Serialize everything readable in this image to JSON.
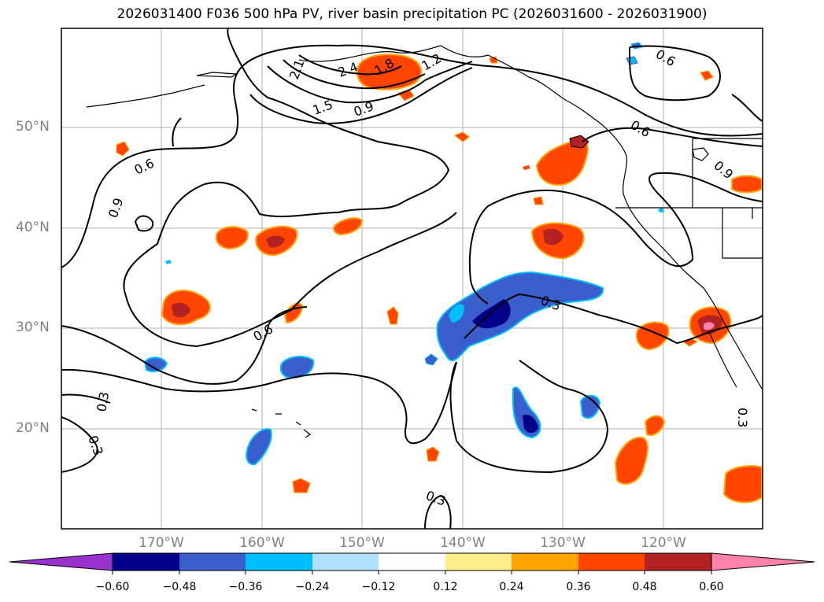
{
  "title": "2026031400 F036 500 hPa PV, river basin precipitation PC (2026031600 - 2026031900)",
  "lat_labels": [
    "50°N",
    "40°N",
    "30°N",
    "20°N"
  ],
  "lon_labels": [
    "170°W",
    "160°W",
    "150°W",
    "140°W",
    "130°W",
    "120°W"
  ],
  "contour_labels": [
    "2.1",
    "2.4",
    "1.8",
    "1.2",
    "1.5",
    "0.9",
    "0.6",
    "0.6",
    "0.9",
    "0.6",
    "0.9",
    "0.6",
    "0.3",
    "0.3",
    "0.3",
    "0.3",
    "0.3"
  ],
  "colorbar": {
    "ticks": [
      "−0.60",
      "−0.48",
      "−0.36",
      "−0.24",
      "−0.12",
      "0.12",
      "0.24",
      "0.36",
      "0.48",
      "0.60"
    ],
    "colors": [
      "#9932cc",
      "#00008b",
      "#3a5fcd",
      "#00bfff",
      "#b0e2ff",
      "#ffffff",
      "#ffec8b",
      "#ffa500",
      "#ff4500",
      "#b22222",
      "#ff82ab"
    ]
  }
}
